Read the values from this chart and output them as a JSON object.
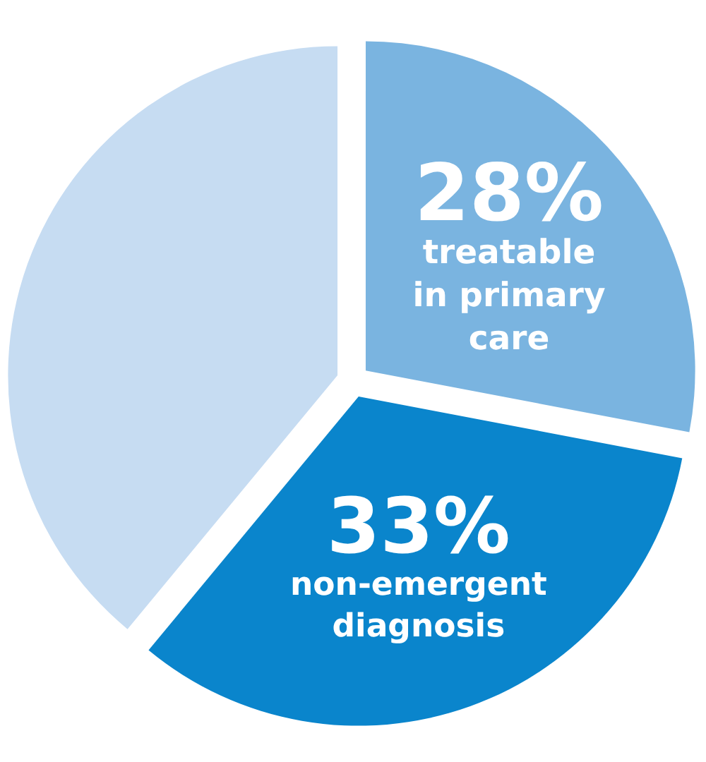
{
  "chart_data": {
    "type": "pie",
    "categories": [
      "treatable in primary care",
      "non-emergent diagnosis",
      null
    ],
    "values": [
      28,
      33,
      39
    ],
    "value_labels": [
      "28%",
      "33%",
      null
    ],
    "colors": [
      "#7ab4e0",
      "#0a85cc",
      "#c6dcf2"
    ]
  }
}
